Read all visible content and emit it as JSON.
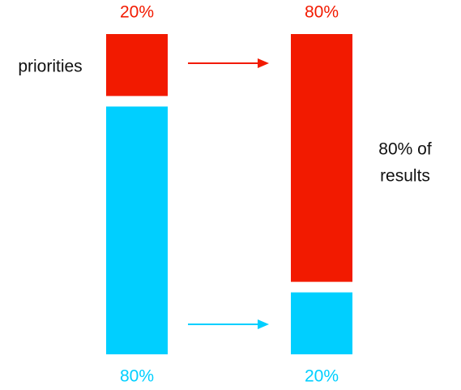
{
  "chart_data": {
    "type": "stacked-bar",
    "categories": [
      null,
      null
    ],
    "ylim": [
      0,
      100
    ],
    "series": [
      {
        "color": "#00cfff",
        "values": [
          80,
          20
        ],
        "value_labels": [
          "80%",
          "20%"
        ]
      },
      {
        "color": "#f21a00",
        "values": [
          20,
          80
        ],
        "value_labels": [
          "20%",
          "80%"
        ]
      }
    ],
    "annotations": [
      "priorities",
      "80% of",
      "results"
    ]
  }
}
